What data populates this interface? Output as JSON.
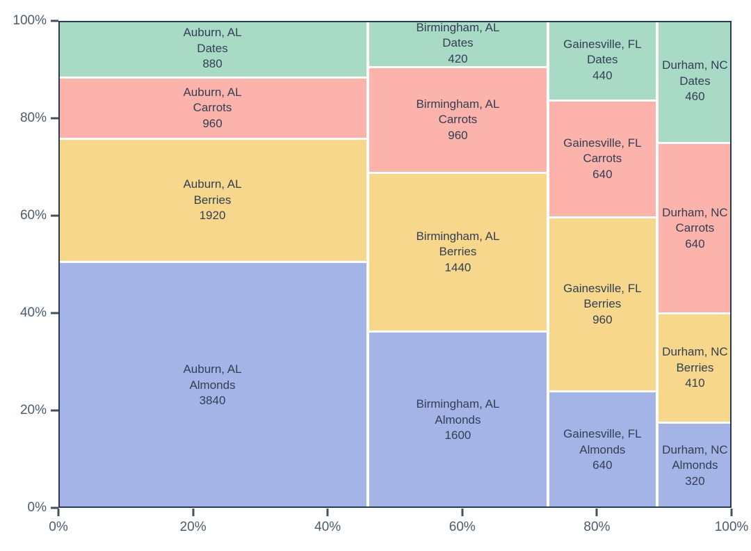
{
  "chart_data": {
    "type": "mosaic",
    "title": "",
    "xlabel": "",
    "ylabel": "",
    "x_axis": {
      "ticks": [
        "0%",
        "20%",
        "40%",
        "60%",
        "80%",
        "100%"
      ],
      "range": [
        0,
        100
      ]
    },
    "y_axis": {
      "ticks": [
        "0%",
        "20%",
        "40%",
        "60%",
        "80%",
        "100%"
      ],
      "range": [
        0,
        100
      ]
    },
    "categories_bottom_to_top": [
      "Almonds",
      "Berries",
      "Carrots",
      "Dates"
    ],
    "category_colors": {
      "Almonds": "#a4b4e6",
      "Berries": "#f6d78c",
      "Carrots": "#fbb3ab",
      "Dates": "#a9dac6"
    },
    "columns": [
      {
        "label": "Auburn, AL",
        "values": {
          "Almonds": 3840,
          "Berries": 1920,
          "Carrots": 960,
          "Dates": 880
        },
        "total": 7600
      },
      {
        "label": "Birmingham, AL",
        "values": {
          "Almonds": 1600,
          "Berries": 1440,
          "Carrots": 960,
          "Dates": 420
        },
        "total": 4420
      },
      {
        "label": "Gainesville, FL",
        "values": {
          "Almonds": 640,
          "Berries": 960,
          "Carrots": 640,
          "Dates": 440
        },
        "total": 2680
      },
      {
        "label": "Durham, NC",
        "values": {
          "Almonds": 320,
          "Berries": 410,
          "Carrots": 640,
          "Dates": 460
        },
        "total": 1830
      }
    ],
    "grand_total": 16530,
    "style": {
      "plot_border_color": "#283a4d",
      "tick_color": "#44525f",
      "tick_label_color": "#4d5b6a",
      "block_label_color": "#333e53",
      "gap_color": "#ffffff"
    }
  }
}
